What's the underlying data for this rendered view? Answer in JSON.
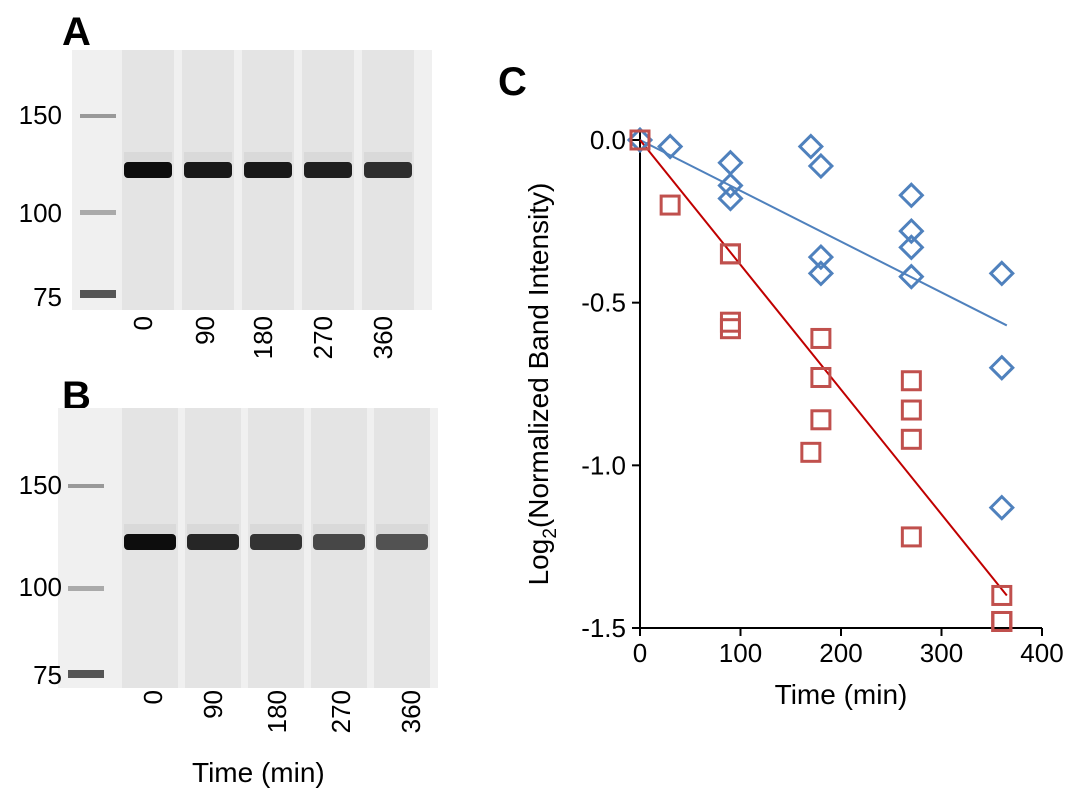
{
  "panels": {
    "a_letter": "A",
    "b_letter": "B",
    "c_letter": "C"
  },
  "gel": {
    "mw_markers": [
      "150",
      "100",
      "75"
    ],
    "lanes": [
      "0",
      "90",
      "180",
      "270",
      "360"
    ],
    "xlabel": "Time (min)",
    "a_band_darkness": [
      0.95,
      0.9,
      0.9,
      0.88,
      0.82
    ],
    "b_band_darkness": [
      0.95,
      0.85,
      0.8,
      0.72,
      0.68
    ]
  },
  "chart_data": {
    "type": "scatter",
    "title": "",
    "xlabel": "Time (min)",
    "ylabel_main": "Log",
    "ylabel_sub": "2",
    "ylabel_rest": "(Normalized Band Intensity)",
    "xlim": [
      0,
      400
    ],
    "ylim": [
      -1.5,
      0.05
    ],
    "x_ticks": [
      0,
      100,
      200,
      300,
      400
    ],
    "x_tick_labels": [
      "0",
      "100",
      "200",
      "300",
      "400"
    ],
    "y_ticks": [
      0,
      -0.5,
      -1.0,
      -1.5
    ],
    "y_tick_labels": [
      "0.0",
      "-0.5",
      "-1.0",
      "-1.5"
    ],
    "grid": false,
    "series": [
      {
        "marker": "diamond",
        "color": "#4f81bd",
        "points": [
          [
            0,
            0.0
          ],
          [
            30,
            -0.02
          ],
          [
            90,
            -0.07
          ],
          [
            90,
            -0.14
          ],
          [
            90,
            -0.18
          ],
          [
            170,
            -0.02
          ],
          [
            180,
            -0.08
          ],
          [
            180,
            -0.36
          ],
          [
            180,
            -0.41
          ],
          [
            270,
            -0.17
          ],
          [
            270,
            -0.28
          ],
          [
            270,
            -0.33
          ],
          [
            270,
            -0.42
          ],
          [
            360,
            -0.41
          ],
          [
            360,
            -0.7
          ],
          [
            360,
            -1.13
          ]
        ],
        "fit": [
          [
            0,
            0.0
          ],
          [
            365,
            -0.57
          ]
        ]
      },
      {
        "marker": "square",
        "color": "#c0504d",
        "points": [
          [
            0,
            0.0
          ],
          [
            30,
            -0.2
          ],
          [
            90,
            -0.35
          ],
          [
            90,
            -0.35
          ],
          [
            90,
            -0.56
          ],
          [
            90,
            -0.58
          ],
          [
            170,
            -0.96
          ],
          [
            180,
            -0.61
          ],
          [
            180,
            -0.73
          ],
          [
            180,
            -0.86
          ],
          [
            270,
            -0.74
          ],
          [
            270,
            -0.83
          ],
          [
            270,
            -0.92
          ],
          [
            270,
            -1.22
          ],
          [
            360,
            -1.4
          ],
          [
            360,
            -1.48
          ],
          [
            360,
            -1.48
          ],
          [
            360,
            -1.48
          ]
        ],
        "fit": [
          [
            0,
            0.0
          ],
          [
            365,
            -1.4
          ]
        ],
        "fit_color": "#c00000"
      }
    ]
  }
}
